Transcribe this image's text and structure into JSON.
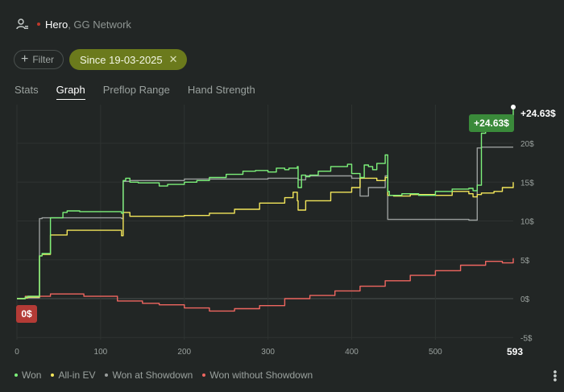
{
  "header": {
    "hero": "Hero",
    "network": "GG Network"
  },
  "filters": {
    "filter_label": "Filter",
    "date_chip": "Since 19-03-2025"
  },
  "tabs": [
    "Stats",
    "Graph",
    "Preflop Range",
    "Hand Strength"
  ],
  "active_tab": "Graph",
  "colors": {
    "won": "#7cf07a",
    "allin_ev": "#f3e65a",
    "showdown": "#9a9e9d",
    "no_showdown": "#ef6660",
    "badge_green": "#3a8a3a",
    "badge_red": "#b43b36"
  },
  "badges": {
    "end_value": "+24.63$",
    "start_value": "0$",
    "end_label": "+24.63$",
    "x_end": "593"
  },
  "chart_data": {
    "type": "line",
    "xlim": [
      0,
      593
    ],
    "ylim": [
      -5,
      26
    ],
    "x_ticks": [
      "0",
      "100",
      "200",
      "300",
      "400",
      "500"
    ],
    "y_ticks": [
      "20$",
      "15$",
      "10$",
      "5$",
      "0$",
      "-5$"
    ],
    "y_tick_values": [
      20,
      15,
      10,
      5,
      0,
      -5
    ],
    "x_tick_values": [
      0,
      100,
      200,
      300,
      400,
      500
    ],
    "grid": true,
    "legend_position": "bottom-left",
    "series": [
      {
        "name": "Won",
        "color": "#7cf07a",
        "x": [
          0,
          10,
          13,
          27,
          30,
          40,
          55,
          60,
          75,
          125,
          127,
          130,
          135,
          145,
          170,
          180,
          200,
          215,
          230,
          250,
          270,
          285,
          300,
          310,
          320,
          325,
          330,
          335,
          336,
          340,
          345,
          350,
          360,
          375,
          395,
          400,
          410,
          415,
          420,
          425,
          430,
          440,
          443,
          445,
          448,
          460,
          480,
          500,
          520,
          540,
          545,
          550,
          555,
          560,
          570,
          580,
          593
        ],
        "y": [
          0,
          0.2,
          0.3,
          5.5,
          5.8,
          10.4,
          11.1,
          11.3,
          11.2,
          11.0,
          15.2,
          15.5,
          15.0,
          14.9,
          14.5,
          14.7,
          15.0,
          15.2,
          15.6,
          16.0,
          16.4,
          16.5,
          16.3,
          16.8,
          16.6,
          16.8,
          16.8,
          17.0,
          14.3,
          15.9,
          15.7,
          15.9,
          16.4,
          17.0,
          17.3,
          16.1,
          15.6,
          17.2,
          17.0,
          16.6,
          17.4,
          18.5,
          13.8,
          13.3,
          13.3,
          13.5,
          13.3,
          13.8,
          14.1,
          14.2,
          13.9,
          14.6,
          21.3,
          22.6,
          23.0,
          23.5,
          24.63
        ]
      },
      {
        "name": "All-in EV",
        "color": "#f3e65a",
        "x": [
          0,
          10,
          13,
          27,
          30,
          40,
          60,
          80,
          125,
          127,
          135,
          160,
          200,
          230,
          260,
          290,
          320,
          330,
          335,
          336,
          345,
          375,
          400,
          410,
          430,
          440,
          443,
          450,
          470,
          500,
          520,
          540,
          545,
          550,
          555,
          570,
          580,
          593
        ],
        "y": [
          0,
          0.1,
          0.2,
          5.5,
          5.7,
          8.2,
          8.8,
          8.8,
          8.1,
          11.1,
          10.6,
          10.6,
          10.7,
          11.0,
          11.5,
          12.3,
          13.0,
          13.7,
          12.6,
          11.4,
          12.6,
          13.7,
          14.3,
          15.5,
          15.2,
          15.6,
          13.3,
          13.2,
          13.4,
          13.3,
          13.8,
          13.5,
          13.1,
          13.4,
          13.6,
          13.8,
          14.3,
          15.0
        ]
      },
      {
        "name": "Won at Showdown",
        "color": "#9a9e9d",
        "x": [
          0,
          10,
          13,
          27,
          30,
          60,
          125,
          127,
          135,
          200,
          300,
          336,
          345,
          400,
          410,
          420,
          440,
          443,
          450,
          500,
          540,
          545,
          550,
          555,
          593
        ],
        "y": [
          0,
          0.1,
          0.1,
          10.3,
          10.4,
          10.4,
          10.3,
          15.1,
          15.2,
          15.4,
          15.5,
          15.3,
          15.8,
          15.5,
          13.2,
          14.3,
          15.8,
          10.2,
          10.2,
          10.2,
          10.1,
          10.1,
          19.4,
          19.5,
          19.5
        ]
      },
      {
        "name": "Won without Showdown",
        "color": "#ef6660",
        "x": [
          0,
          10,
          40,
          80,
          120,
          150,
          170,
          200,
          230,
          260,
          290,
          320,
          350,
          380,
          410,
          440,
          470,
          500,
          530,
          560,
          580,
          593
        ],
        "y": [
          0,
          0.3,
          0.6,
          0.3,
          -0.3,
          -0.6,
          -0.8,
          -1.2,
          -1.6,
          -1.3,
          -0.9,
          0.0,
          0.4,
          1.0,
          1.6,
          2.3,
          3.0,
          3.6,
          4.3,
          4.8,
          4.6,
          5.2
        ]
      }
    ]
  }
}
